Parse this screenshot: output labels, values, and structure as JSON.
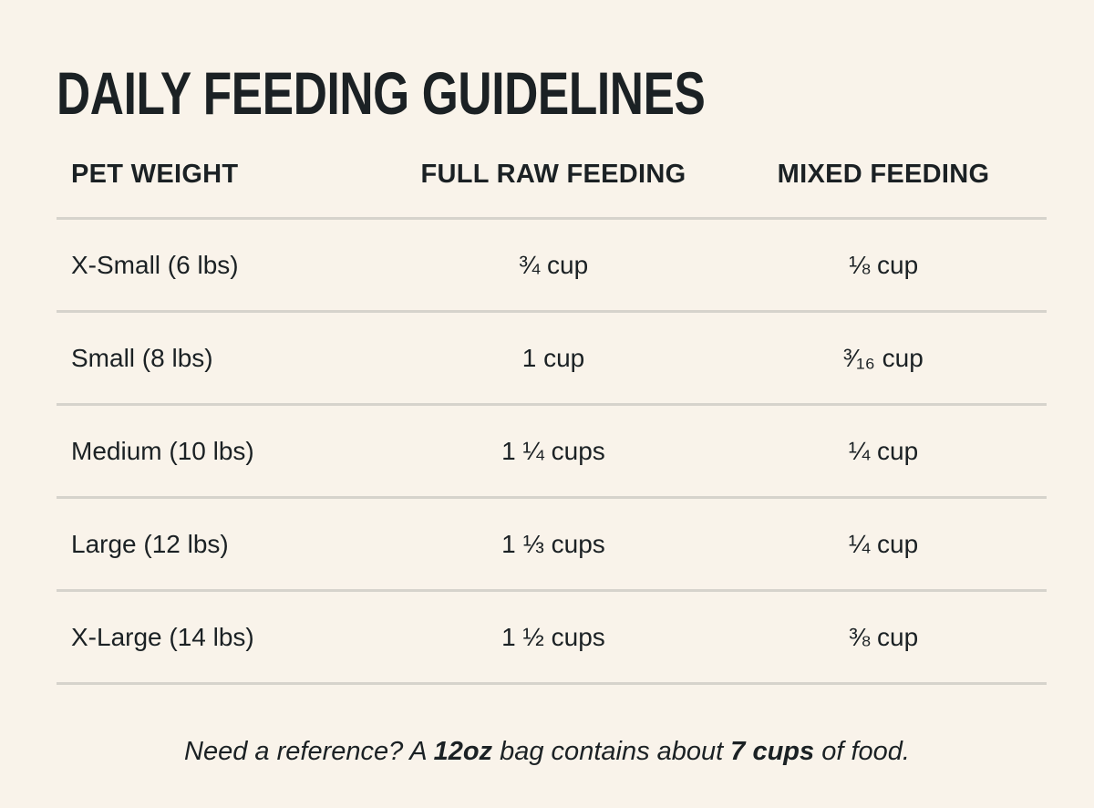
{
  "title": "DAILY FEEDING GUIDELINES",
  "table": {
    "headers": [
      "PET WEIGHT",
      "FULL RAW FEEDING",
      "MIXED FEEDING"
    ],
    "rows": [
      [
        "X-Small (6 lbs)",
        "¾ cup",
        "⅛ cup"
      ],
      [
        "Small (8 lbs)",
        "1 cup",
        "³⁄₁₆ cup"
      ],
      [
        "Medium (10 lbs)",
        "1 ¼ cups",
        "¼ cup"
      ],
      [
        "Large (12 lbs)",
        "1 ⅓ cups",
        "¼ cup"
      ],
      [
        "X-Large (14 lbs)",
        "1 ½ cups",
        "⅜ cup"
      ]
    ]
  },
  "note": {
    "part1": "Need a reference? A ",
    "bold1": "12oz",
    "part2": " bag contains about ",
    "bold2": "7 cups",
    "part3": " of food."
  },
  "colors": {
    "background": "#f9f3ea",
    "text": "#1b2124",
    "divider": "#d6d3cc"
  }
}
